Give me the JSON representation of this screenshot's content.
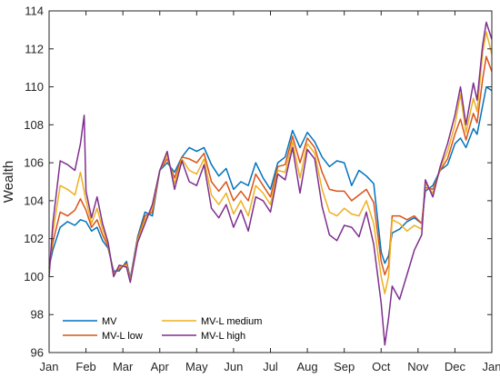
{
  "chart_data": {
    "type": "line",
    "title": "",
    "xlabel": "",
    "ylabel": "Wealth",
    "ylim": [
      96,
      114
    ],
    "yticks": [
      96,
      98,
      100,
      102,
      104,
      106,
      108,
      110,
      112,
      114
    ],
    "xticks": [
      "Jan",
      "Feb",
      "Mar",
      "Apr",
      "May",
      "Jun",
      "Jul",
      "Aug",
      "Sep",
      "Oct",
      "Nov",
      "Dec",
      "Jan"
    ],
    "grid": false,
    "legend_position": "bottom-left",
    "colors": {
      "MV": "#0072BD",
      "MV-L low": "#D95319",
      "MV-L medium": "#EDB120",
      "MV-L high": "#7E2F8E"
    },
    "series": [
      {
        "name": "MV",
        "points": [
          [
            0,
            100.5
          ],
          [
            0.1,
            101.4
          ],
          [
            0.3,
            102.6
          ],
          [
            0.5,
            102.9
          ],
          [
            0.7,
            102.7
          ],
          [
            0.85,
            103.0
          ],
          [
            1.0,
            102.9
          ],
          [
            1.15,
            102.4
          ],
          [
            1.3,
            102.6
          ],
          [
            1.45,
            101.9
          ],
          [
            1.6,
            101.5
          ],
          [
            1.75,
            100.3
          ],
          [
            1.9,
            100.3
          ],
          [
            2.1,
            100.8
          ],
          [
            2.2,
            99.9
          ],
          [
            2.4,
            102.1
          ],
          [
            2.6,
            103.4
          ],
          [
            2.8,
            103.2
          ],
          [
            3.0,
            105.6
          ],
          [
            3.2,
            106.0
          ],
          [
            3.4,
            105.5
          ],
          [
            3.6,
            106.3
          ],
          [
            3.8,
            106.8
          ],
          [
            4.0,
            106.6
          ],
          [
            4.2,
            106.8
          ],
          [
            4.4,
            105.9
          ],
          [
            4.6,
            105.3
          ],
          [
            4.8,
            105.7
          ],
          [
            5.0,
            104.6
          ],
          [
            5.2,
            105.0
          ],
          [
            5.4,
            104.8
          ],
          [
            5.6,
            106.0
          ],
          [
            5.8,
            105.2
          ],
          [
            6.0,
            104.6
          ],
          [
            6.2,
            106.0
          ],
          [
            6.4,
            106.3
          ],
          [
            6.6,
            107.7
          ],
          [
            6.8,
            106.8
          ],
          [
            7.0,
            107.6
          ],
          [
            7.2,
            107.1
          ],
          [
            7.4,
            106.3
          ],
          [
            7.6,
            105.8
          ],
          [
            7.8,
            106.1
          ],
          [
            8.0,
            106.0
          ],
          [
            8.2,
            104.8
          ],
          [
            8.4,
            105.6
          ],
          [
            8.6,
            105.3
          ],
          [
            8.8,
            104.9
          ],
          [
            9.0,
            101.3
          ],
          [
            9.1,
            100.7
          ],
          [
            9.2,
            101.1
          ],
          [
            9.3,
            102.3
          ],
          [
            9.5,
            102.5
          ],
          [
            9.7,
            102.9
          ],
          [
            9.9,
            103.1
          ],
          [
            10.1,
            102.8
          ],
          [
            10.2,
            104.5
          ],
          [
            10.4,
            104.8
          ],
          [
            10.6,
            105.6
          ],
          [
            10.8,
            105.9
          ],
          [
            11.0,
            107.0
          ],
          [
            11.15,
            107.3
          ],
          [
            11.3,
            106.8
          ],
          [
            11.5,
            107.8
          ],
          [
            11.6,
            107.5
          ],
          [
            11.75,
            109.0
          ],
          [
            11.85,
            110.0
          ],
          [
            12.0,
            109.8
          ]
        ]
      },
      {
        "name": "MV-L low",
        "points": [
          [
            0,
            100.4
          ],
          [
            0.1,
            101.8
          ],
          [
            0.3,
            103.4
          ],
          [
            0.5,
            103.2
          ],
          [
            0.7,
            103.5
          ],
          [
            0.85,
            104.1
          ],
          [
            1.0,
            103.5
          ],
          [
            1.15,
            102.6
          ],
          [
            1.3,
            103.0
          ],
          [
            1.45,
            102.2
          ],
          [
            1.6,
            101.6
          ],
          [
            1.75,
            100.2
          ],
          [
            1.9,
            100.4
          ],
          [
            2.1,
            100.7
          ],
          [
            2.2,
            99.8
          ],
          [
            2.4,
            102.0
          ],
          [
            2.6,
            103.2
          ],
          [
            2.8,
            103.4
          ],
          [
            3.0,
            105.6
          ],
          [
            3.2,
            106.2
          ],
          [
            3.4,
            105.2
          ],
          [
            3.6,
            106.3
          ],
          [
            3.8,
            106.2
          ],
          [
            4.0,
            106.0
          ],
          [
            4.2,
            106.5
          ],
          [
            4.4,
            105.0
          ],
          [
            4.6,
            104.5
          ],
          [
            4.8,
            105.0
          ],
          [
            5.0,
            104.0
          ],
          [
            5.2,
            104.5
          ],
          [
            5.4,
            104.0
          ],
          [
            5.6,
            105.4
          ],
          [
            5.8,
            104.8
          ],
          [
            6.0,
            104.2
          ],
          [
            6.2,
            105.8
          ],
          [
            6.4,
            105.9
          ],
          [
            6.6,
            107.4
          ],
          [
            6.8,
            106.0
          ],
          [
            7.0,
            107.3
          ],
          [
            7.2,
            106.8
          ],
          [
            7.4,
            105.5
          ],
          [
            7.6,
            104.6
          ],
          [
            7.8,
            104.5
          ],
          [
            8.0,
            104.5
          ],
          [
            8.2,
            104.0
          ],
          [
            8.4,
            104.3
          ],
          [
            8.6,
            104.6
          ],
          [
            8.8,
            103.9
          ],
          [
            9.0,
            100.8
          ],
          [
            9.1,
            100.1
          ],
          [
            9.2,
            100.6
          ],
          [
            9.3,
            103.2
          ],
          [
            9.5,
            103.2
          ],
          [
            9.7,
            103.0
          ],
          [
            9.9,
            103.2
          ],
          [
            10.1,
            102.8
          ],
          [
            10.2,
            104.7
          ],
          [
            10.4,
            104.6
          ],
          [
            10.6,
            105.6
          ],
          [
            10.8,
            106.2
          ],
          [
            11.0,
            107.5
          ],
          [
            11.15,
            108.3
          ],
          [
            11.3,
            107.2
          ],
          [
            11.5,
            108.6
          ],
          [
            11.6,
            108.1
          ],
          [
            11.75,
            110.4
          ],
          [
            11.85,
            111.6
          ],
          [
            12.0,
            110.8
          ]
        ]
      },
      {
        "name": "MV-L medium",
        "points": [
          [
            0,
            100.2
          ],
          [
            0.1,
            102.3
          ],
          [
            0.3,
            104.8
          ],
          [
            0.5,
            104.6
          ],
          [
            0.7,
            104.3
          ],
          [
            0.85,
            105.5
          ],
          [
            1.0,
            104.0
          ],
          [
            1.15,
            102.8
          ],
          [
            1.3,
            103.6
          ],
          [
            1.45,
            102.5
          ],
          [
            1.6,
            101.7
          ],
          [
            1.75,
            100.1
          ],
          [
            1.9,
            100.5
          ],
          [
            2.1,
            100.6
          ],
          [
            2.2,
            99.8
          ],
          [
            2.4,
            101.9
          ],
          [
            2.6,
            103.0
          ],
          [
            2.8,
            103.6
          ],
          [
            3.0,
            105.6
          ],
          [
            3.2,
            106.4
          ],
          [
            3.4,
            104.9
          ],
          [
            3.6,
            106.2
          ],
          [
            3.8,
            105.6
          ],
          [
            4.0,
            105.4
          ],
          [
            4.2,
            106.2
          ],
          [
            4.4,
            104.3
          ],
          [
            4.6,
            103.8
          ],
          [
            4.8,
            104.4
          ],
          [
            5.0,
            103.3
          ],
          [
            5.2,
            104.0
          ],
          [
            5.4,
            103.2
          ],
          [
            5.6,
            104.8
          ],
          [
            5.8,
            104.4
          ],
          [
            6.0,
            103.8
          ],
          [
            6.2,
            105.6
          ],
          [
            6.4,
            105.5
          ],
          [
            6.6,
            107.1
          ],
          [
            6.8,
            105.2
          ],
          [
            7.0,
            107.0
          ],
          [
            7.2,
            106.5
          ],
          [
            7.4,
            104.6
          ],
          [
            7.6,
            103.4
          ],
          [
            7.8,
            103.2
          ],
          [
            8.0,
            103.6
          ],
          [
            8.2,
            103.3
          ],
          [
            8.4,
            103.2
          ],
          [
            8.6,
            104.0
          ],
          [
            8.8,
            102.8
          ],
          [
            9.0,
            100.0
          ],
          [
            9.1,
            99.1
          ],
          [
            9.2,
            100.0
          ],
          [
            9.3,
            103.0
          ],
          [
            9.5,
            102.8
          ],
          [
            9.7,
            102.4
          ],
          [
            9.9,
            102.7
          ],
          [
            10.1,
            102.5
          ],
          [
            10.2,
            104.9
          ],
          [
            10.4,
            104.4
          ],
          [
            10.6,
            105.7
          ],
          [
            10.8,
            106.6
          ],
          [
            11.0,
            108.0
          ],
          [
            11.15,
            109.6
          ],
          [
            11.3,
            107.6
          ],
          [
            11.5,
            109.4
          ],
          [
            11.6,
            108.7
          ],
          [
            11.75,
            111.8
          ],
          [
            11.85,
            112.9
          ],
          [
            12.0,
            111.7
          ]
        ]
      },
      {
        "name": "MV-L high",
        "points": [
          [
            0,
            100.0
          ],
          [
            0.1,
            102.8
          ],
          [
            0.3,
            106.1
          ],
          [
            0.5,
            105.9
          ],
          [
            0.7,
            105.6
          ],
          [
            0.85,
            107.0
          ],
          [
            0.95,
            108.5
          ],
          [
            1.0,
            104.5
          ],
          [
            1.15,
            103.1
          ],
          [
            1.3,
            104.2
          ],
          [
            1.45,
            102.8
          ],
          [
            1.6,
            101.8
          ],
          [
            1.75,
            100.0
          ],
          [
            1.9,
            100.6
          ],
          [
            2.1,
            100.5
          ],
          [
            2.2,
            99.7
          ],
          [
            2.4,
            101.8
          ],
          [
            2.6,
            102.8
          ],
          [
            2.8,
            103.8
          ],
          [
            3.0,
            105.6
          ],
          [
            3.2,
            106.6
          ],
          [
            3.4,
            104.6
          ],
          [
            3.6,
            106.1
          ],
          [
            3.8,
            105.0
          ],
          [
            4.0,
            104.8
          ],
          [
            4.2,
            105.9
          ],
          [
            4.4,
            103.6
          ],
          [
            4.6,
            103.1
          ],
          [
            4.8,
            103.8
          ],
          [
            5.0,
            102.6
          ],
          [
            5.2,
            103.5
          ],
          [
            5.4,
            102.4
          ],
          [
            5.6,
            104.2
          ],
          [
            5.8,
            104.0
          ],
          [
            6.0,
            103.4
          ],
          [
            6.2,
            105.4
          ],
          [
            6.4,
            105.1
          ],
          [
            6.6,
            106.8
          ],
          [
            6.8,
            104.4
          ],
          [
            7.0,
            106.7
          ],
          [
            7.2,
            106.2
          ],
          [
            7.4,
            103.7
          ],
          [
            7.6,
            102.2
          ],
          [
            7.8,
            101.9
          ],
          [
            8.0,
            102.7
          ],
          [
            8.2,
            102.6
          ],
          [
            8.4,
            102.1
          ],
          [
            8.6,
            103.4
          ],
          [
            8.8,
            101.7
          ],
          [
            9.0,
            98.6
          ],
          [
            9.1,
            96.4
          ],
          [
            9.2,
            97.8
          ],
          [
            9.3,
            99.5
          ],
          [
            9.5,
            98.8
          ],
          [
            9.7,
            100.1
          ],
          [
            9.9,
            101.4
          ],
          [
            10.1,
            102.2
          ],
          [
            10.2,
            105.1
          ],
          [
            10.4,
            104.2
          ],
          [
            10.6,
            105.8
          ],
          [
            10.8,
            107.0
          ],
          [
            11.0,
            108.5
          ],
          [
            11.15,
            110.0
          ],
          [
            11.3,
            108.0
          ],
          [
            11.5,
            110.2
          ],
          [
            11.6,
            109.3
          ],
          [
            11.75,
            112.2
          ],
          [
            11.85,
            113.4
          ],
          [
            12.0,
            112.5
          ]
        ]
      }
    ]
  }
}
